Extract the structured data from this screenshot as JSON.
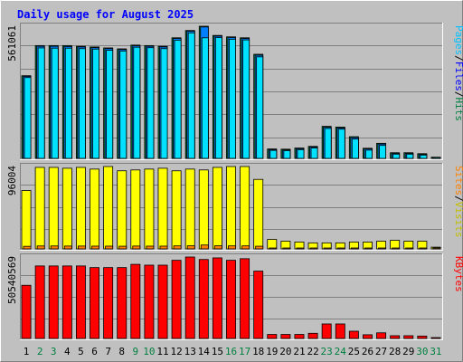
{
  "chart_data": {
    "type": "bar",
    "title": "Daily usage for August 2025",
    "colors": {
      "background": "#c0c0c0",
      "title": "#0000ff",
      "grid": "#808080",
      "pages": "#00e0ff",
      "files": "#0080ff",
      "hits": "#008040",
      "visits": "#ffff00",
      "sites": "#ff8000",
      "kbytes": "#ff0000",
      "weekend_day": "#008040",
      "weekday_day": "#000000"
    },
    "days": [
      "1",
      "2",
      "3",
      "4",
      "5",
      "6",
      "7",
      "8",
      "9",
      "10",
      "11",
      "12",
      "13",
      "14",
      "15",
      "16",
      "17",
      "18",
      "19",
      "20",
      "21",
      "22",
      "23",
      "24",
      "25",
      "26",
      "27",
      "28",
      "29",
      "30",
      "31"
    ],
    "weekend_days": [
      "2",
      "3",
      "9",
      "10",
      "16",
      "17",
      "23",
      "24",
      "30",
      "31"
    ],
    "panels": [
      {
        "name": "hits-files-pages",
        "scale_label": "561061",
        "ylim": [
          0,
          561061
        ],
        "legend": [
          {
            "text": "Pages",
            "color": "#00c0ff"
          },
          {
            "text": "/",
            "color": "#000000"
          },
          {
            "text": "Files",
            "color": "#0000ff"
          },
          {
            "text": "/",
            "color": "#000000"
          },
          {
            "text": "Hits",
            "color": "#008040"
          }
        ],
        "series": [
          {
            "name": "Hits",
            "color": "#008040",
            "values": [
              351000,
              479000,
              479000,
              479000,
              476000,
              473000,
              469000,
              465000,
              481000,
              479000,
              476000,
              512000,
              543000,
              561061,
              522000,
              516000,
              512000,
              442000,
              40000,
              39000,
              44000,
              51000,
              136000,
              133000,
              92000,
              43000,
              64000,
              24000,
              24000,
              20000,
              5000
            ]
          },
          {
            "name": "Files",
            "color": "#0080ff",
            "values": [
              348000,
              476000,
              476000,
              475000,
              473000,
              470000,
              466000,
              462000,
              478000,
              476000,
              473000,
              509000,
              540000,
              558000,
              519000,
              513000,
              509000,
              438000,
              37000,
              36000,
              41000,
              48000,
              132000,
              129000,
              88000,
              40000,
              61000,
              21000,
              21000,
              17000,
              4000
            ]
          },
          {
            "name": "Pages",
            "color": "#00e0ff",
            "values": [
              343000,
              469000,
              468000,
              468000,
              466000,
              464000,
              459000,
              456000,
              472000,
              470000,
              466000,
              502000,
              533000,
              512000,
              513000,
              506000,
              503000,
              431000,
              34000,
              33000,
              37000,
              44000,
              127000,
              124000,
              82000,
              35000,
              55000,
              18000,
              18000,
              14000,
              3000
            ]
          }
        ]
      },
      {
        "name": "visits-sites",
        "scale_label": "96004",
        "ylim": [
          0,
          96004
        ],
        "legend": [
          {
            "text": "Sites",
            "color": "#ff8000"
          },
          {
            "text": "/",
            "color": "#000000"
          },
          {
            "text": "Visits",
            "color": "#c0c000"
          }
        ],
        "series": [
          {
            "name": "Visits",
            "color": "#ffff00",
            "values": [
              68000,
              95000,
              95000,
              94000,
              95000,
              93000,
              96000,
              91000,
              92000,
              93000,
              94000,
              91000,
              93000,
              92000,
              95000,
              96004,
              96004,
              81000,
              11000,
              9000,
              8000,
              7000,
              7000,
              7000,
              8000,
              8000,
              9000,
              10000,
              9000,
              9000,
              2000
            ]
          },
          {
            "name": "Sites",
            "color": "#ff8000",
            "values": [
              3000,
              3400,
              3400,
              3300,
              3300,
              3200,
              3200,
              3100,
              3300,
              3200,
              3200,
              3500,
              3600,
              4500,
              3600,
              3500,
              3500,
              3100,
              800,
              700,
              700,
              700,
              1000,
              1000,
              900,
              700,
              800,
              600,
              600,
              500,
              100
            ]
          }
        ]
      },
      {
        "name": "kbytes",
        "scale_label": "50540569",
        "ylim": [
          0,
          50540569
        ],
        "legend": [
          {
            "text": "KBytes",
            "color": "#ff0000"
          }
        ],
        "series": [
          {
            "name": "KBytes",
            "color": "#ff0000",
            "values": [
              33000000,
              45000000,
              45000000,
              45000000,
              45000000,
              44000000,
              44000000,
              44000000,
              46000000,
              45500000,
              45500000,
              48500000,
              50540569,
              49000000,
              50000000,
              48500000,
              49500000,
              41800000,
              2500000,
              2500000,
              2500000,
              3200000,
              9000000,
              9000000,
              4500000,
              2300000,
              3500000,
              1700000,
              1700000,
              1500000,
              400000
            ]
          }
        ]
      }
    ]
  }
}
